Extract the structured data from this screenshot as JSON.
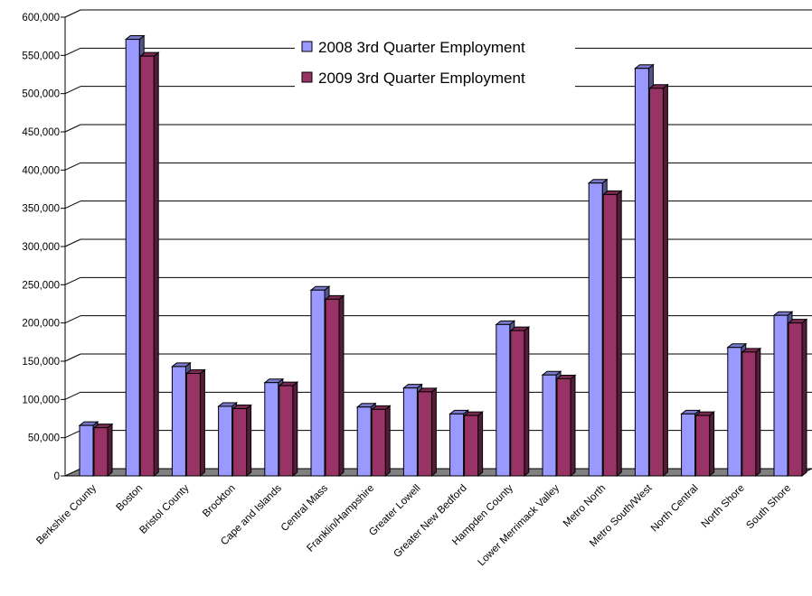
{
  "chart_data": {
    "type": "bar",
    "categories": [
      "Berkshire County",
      "Boston",
      "Bristol County",
      "Brockton",
      "Cape and Islands",
      "Central Mass",
      "Franklin/Hampshire",
      "Greater Lowell",
      "Greater New Bedford",
      "Hampden County",
      "Lower Merrimack Valley",
      "Metro North",
      "Metro South/West",
      "North Central",
      "North Shore",
      "South Shore"
    ],
    "series": [
      {
        "name": "2008 3rd Quarter Employment",
        "color": "#9999ff",
        "values": [
          66000,
          571000,
          143000,
          91000,
          122000,
          243000,
          90000,
          115000,
          81000,
          198000,
          132000,
          383000,
          533000,
          81000,
          168000,
          210000
        ]
      },
      {
        "name": "2009 3rd Quarter Employment",
        "color": "#993366",
        "values": [
          63000,
          549000,
          134000,
          88000,
          118000,
          231000,
          87000,
          110000,
          79000,
          190000,
          127000,
          368000,
          507000,
          79000,
          162000,
          200000
        ]
      }
    ],
    "ylim": [
      0,
      600000
    ],
    "yticks": [
      "0",
      "50,000",
      "100,000",
      "150,000",
      "200,000",
      "250,000",
      "300,000",
      "350,000",
      "400,000",
      "450,000",
      "500,000",
      "550,000",
      "600,000"
    ],
    "grid": true,
    "legend_position": "top-right",
    "floor_color": "#808080",
    "title": "",
    "xlabel": "",
    "ylabel": ""
  }
}
